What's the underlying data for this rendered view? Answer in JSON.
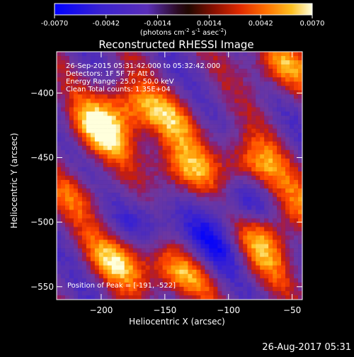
{
  "chart_data": {
    "type": "heatmap",
    "title": "Reconstructed RHESSI Image",
    "xlabel": "Heliocentric X (arcsec)",
    "ylabel": "Heliocentric Y (arcsec)",
    "xlim": [
      -235,
      -42
    ],
    "ylim": [
      -560,
      -368
    ],
    "x_ticks": [
      -200,
      -150,
      -100,
      -50
    ],
    "y_ticks": [
      -400,
      -450,
      -500,
      -550
    ],
    "colorbar": {
      "range": [
        -0.007,
        0.007
      ],
      "tick_values": [
        -0.007,
        -0.0042,
        -0.0014,
        0.0014,
        0.0042,
        0.007
      ],
      "tick_labels": [
        "-0.0070",
        "-0.0042",
        "-0.0014",
        "0.0014",
        "0.0042",
        "0.0070"
      ],
      "unit_main": "(photons cm",
      "unit_exp1": "-2",
      "unit_mid1": " s",
      "unit_exp2": "-1",
      "unit_mid2": " asec",
      "unit_exp3": "-2",
      "unit_end": ")"
    },
    "annotations": [
      "26-Sep-2015 05:31:42.000 to 05:32:42.000",
      "Detectors: 1F 5F 7F  Att 0",
      "Energy Range: 25.0 - 50.0 keV",
      "Clean    Total counts: 1.35E+04"
    ],
    "peak_label": "Position of Peak = [-191, -522]",
    "sources": [
      {
        "x": -200,
        "y": -430,
        "amplitude": 1.0
      },
      {
        "x": -180,
        "y": -410,
        "amplitude": 0.8
      },
      {
        "x": -135,
        "y": -460,
        "amplitude": 0.9
      },
      {
        "x": -80,
        "y": -455,
        "amplitude": 0.9
      },
      {
        "x": -60,
        "y": -380,
        "amplitude": 0.8
      },
      {
        "x": -50,
        "y": -490,
        "amplitude": 0.6
      },
      {
        "x": -75,
        "y": -505,
        "amplitude": 0.9
      },
      {
        "x": -185,
        "y": -530,
        "amplitude": 0.9
      },
      {
        "x": -140,
        "y": -540,
        "amplitude": 0.8
      },
      {
        "x": -145,
        "y": -420,
        "amplitude": 0.6
      },
      {
        "x": -75,
        "y": -530,
        "amplitude": 0.5
      },
      {
        "x": -220,
        "y": -480,
        "amplitude": 0.5
      }
    ],
    "negative_regions": [
      {
        "x": -85,
        "y": -490,
        "amplitude": -1.0
      },
      {
        "x": -110,
        "y": -520,
        "amplitude": -0.6
      },
      {
        "x": -160,
        "y": -500,
        "amplitude": -0.5
      }
    ],
    "grid": false
  },
  "footer": {
    "timestamp": "26-Aug-2017 05:31"
  },
  "colors": {
    "background": "#000000",
    "foreground": "#ffffff",
    "colormap": [
      "#0000ff",
      "#3a1fc4",
      "#6a3aa8",
      "#7a3a95",
      "#cc2a10",
      "#ff3a00",
      "#ff7a00",
      "#ffb000",
      "#ffe060",
      "#ffffff"
    ]
  }
}
